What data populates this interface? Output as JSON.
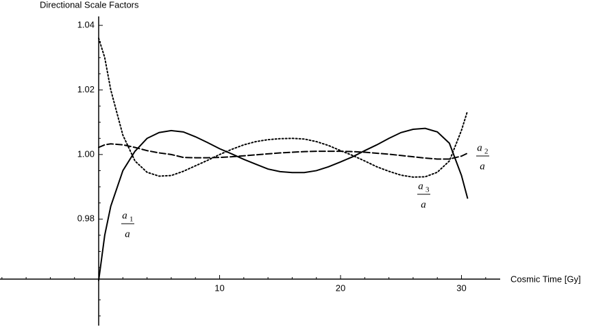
{
  "chart_data": {
    "type": "line",
    "ylabel": "Directional Scale Factors",
    "xlabel": "Cosmic Time [Gy]",
    "x": [
      0,
      0.5,
      1,
      2,
      3,
      4,
      5,
      6,
      7,
      8,
      9,
      10,
      11,
      12,
      13,
      14,
      15,
      16,
      17,
      18,
      19,
      20,
      21,
      22,
      23,
      24,
      25,
      26,
      27,
      28,
      29,
      30,
      30.5
    ],
    "series": [
      {
        "label": {
          "numerator": "a",
          "subscript": "1",
          "denominator": "a"
        },
        "color": "#000000",
        "dash": "solid",
        "values": [
          0.961,
          0.975,
          0.984,
          0.995,
          1.001,
          1.005,
          1.0068,
          1.0074,
          1.007,
          1.0055,
          1.0037,
          1.0018,
          1.0002,
          0.9985,
          0.997,
          0.9955,
          0.9947,
          0.9944,
          0.9944,
          0.995,
          0.9962,
          0.9977,
          0.9993,
          1.0012,
          1.003,
          1.005,
          1.0068,
          1.0078,
          1.0081,
          1.007,
          1.0035,
          0.9935,
          0.9865
        ]
      },
      {
        "label": {
          "numerator": "a",
          "subscript": "2",
          "denominator": "a"
        },
        "color": "#000000",
        "dash": "dashed",
        "values": [
          1.0022,
          1.003,
          1.0033,
          1.003,
          1.0022,
          1.0012,
          1.0005,
          1.0,
          0.9991,
          0.999,
          0.999,
          0.9991,
          0.9993,
          0.9996,
          0.9999,
          1.0002,
          1.0005,
          1.0007,
          1.0009,
          1.001,
          1.001,
          1.001,
          1.0009,
          1.0007,
          1.0004,
          1.0001,
          0.9997,
          0.9993,
          0.9989,
          0.9986,
          0.9986,
          0.9995,
          1.0004
        ]
      },
      {
        "label": {
          "numerator": "a",
          "subscript": "3",
          "denominator": "a"
        },
        "color": "#000000",
        "dash": "dotted",
        "values": [
          1.036,
          1.03,
          1.02,
          1.006,
          0.998,
          0.9945,
          0.9933,
          0.9935,
          0.9948,
          0.9965,
          0.9982,
          1.0,
          1.0016,
          1.003,
          1.004,
          1.0046,
          1.0049,
          1.005,
          1.0048,
          1.004,
          1.0028,
          1.0012,
          0.9997,
          0.998,
          0.9962,
          0.9948,
          0.9936,
          0.993,
          0.9931,
          0.9945,
          0.998,
          1.0075,
          1.0135
        ]
      }
    ],
    "xlim": [
      -8.16,
      33.2
    ],
    "ylim": [
      0.947,
      1.0415
    ],
    "xticks": [
      10,
      20,
      30
    ],
    "yticks": [
      0.98,
      {
        "value": 1,
        "label": "1.00"
      },
      1.02,
      1.04
    ],
    "xminorticks": [
      -8,
      -6,
      -4,
      -2,
      2,
      4,
      6,
      8,
      12,
      14,
      16,
      18,
      22,
      24,
      26,
      28,
      32
    ],
    "yminorticks": [
      0.95,
      0.955,
      0.965,
      0.97,
      0.975,
      0.985,
      0.99,
      0.995,
      1.005,
      1.01,
      1.015,
      1.025,
      1.03,
      1.035
    ],
    "axis_crossing_y": 0.9614,
    "grid": false
  }
}
